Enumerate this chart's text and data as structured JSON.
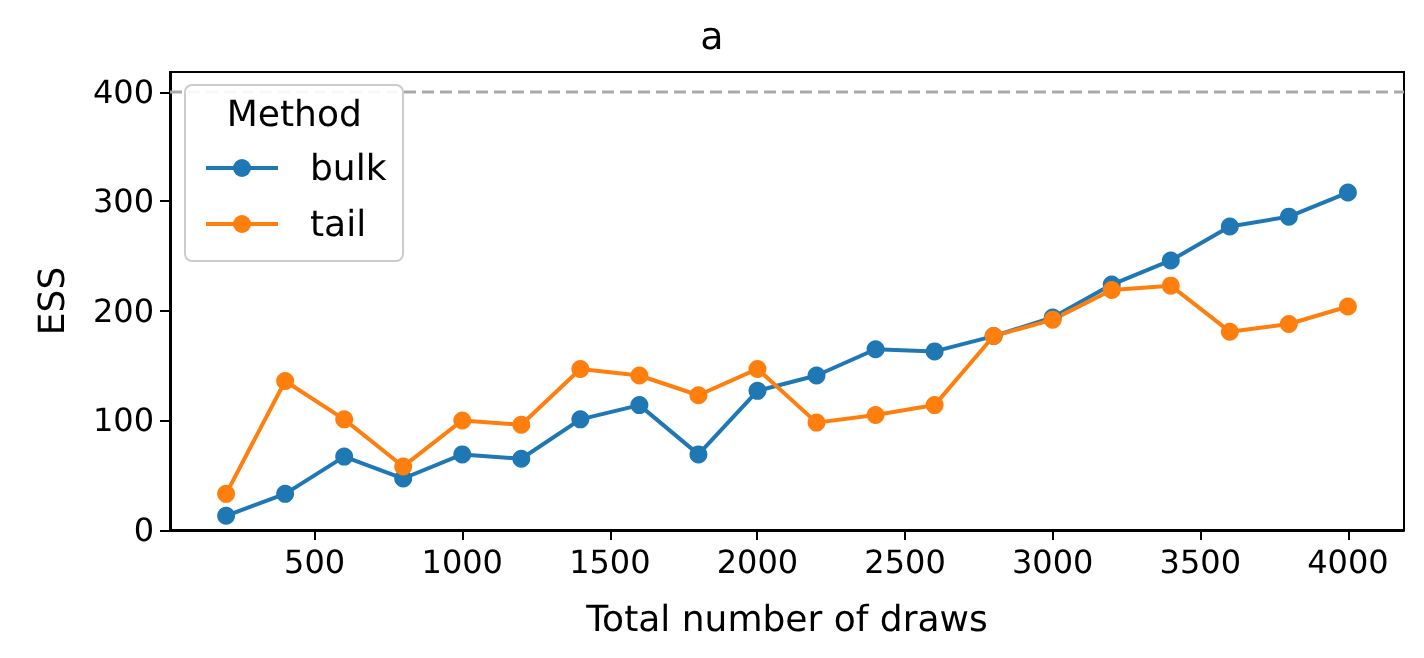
{
  "chart_data": {
    "type": "line",
    "title": "a",
    "xlabel": "Total number of draws",
    "ylabel": "ESS",
    "legend_title": "Method",
    "legend": "top left",
    "marker": "circle",
    "line_style": "solid",
    "grid": false,
    "x": [
      200,
      400,
      600,
      800,
      1000,
      1200,
      1400,
      1600,
      1800,
      2000,
      2200,
      2400,
      2600,
      2800,
      3000,
      3200,
      3400,
      3600,
      3800,
      4000
    ],
    "xlim": [
      10,
      4190
    ],
    "xticks": [
      500,
      1000,
      1500,
      2000,
      2500,
      3000,
      3500,
      4000
    ],
    "ylim": [
      0,
      418
    ],
    "yticks": [
      0,
      100,
      200,
      300,
      400
    ],
    "series": [
      {
        "name": "bulk",
        "color": "#1f77b4",
        "values": [
          13,
          33,
          67,
          47,
          69,
          65,
          101,
          114,
          69,
          127,
          141,
          165,
          163,
          177,
          194,
          224,
          246,
          277,
          286,
          308
        ]
      },
      {
        "name": "tail",
        "color": "#ff7f0e",
        "values": [
          33,
          136,
          101,
          58,
          100,
          96,
          147,
          141,
          123,
          147,
          98,
          105,
          114,
          177,
          192,
          219,
          223,
          181,
          188,
          204
        ]
      }
    ],
    "ref_lines": [
      {
        "axis": "y",
        "value": 400,
        "color": "#a9a9a9",
        "line_style": "dashed"
      }
    ]
  }
}
